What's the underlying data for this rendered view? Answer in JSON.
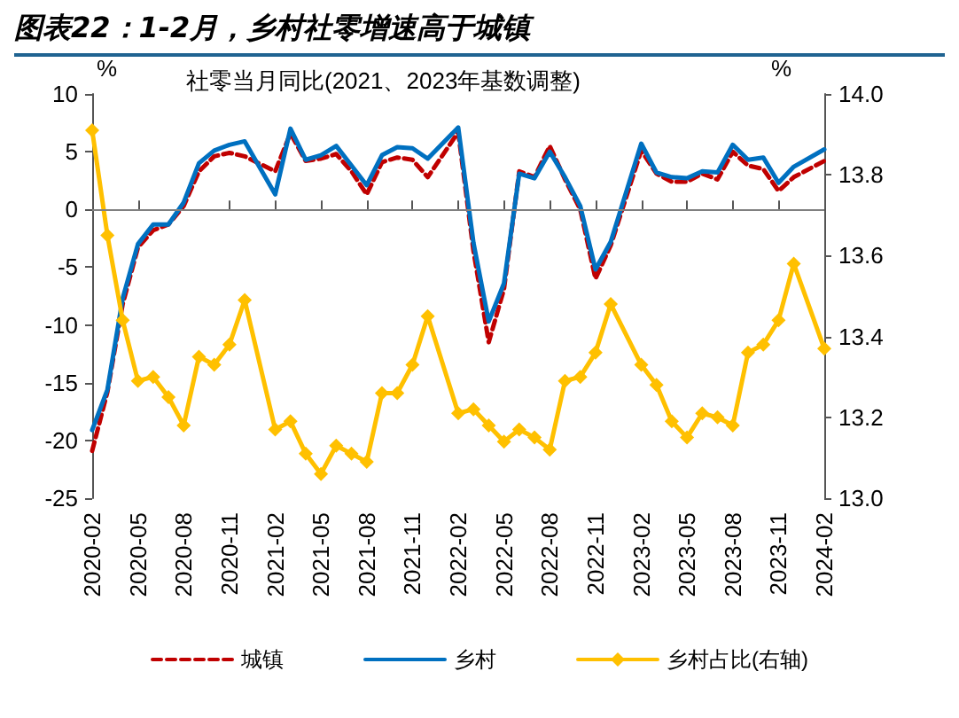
{
  "chart_data": {
    "type": "line",
    "title": "图表22：1-2月，乡村社零增速高于城镇",
    "subtitle": "社零当月同比(2021、2023年基数调整)",
    "ylabel": "%",
    "y2label": "%",
    "categories": [
      "2020-02",
      null,
      null,
      "2020-05",
      null,
      null,
      "2020-08",
      null,
      null,
      "2020-11",
      null,
      null,
      "2021-02",
      null,
      null,
      "2021-05",
      null,
      null,
      "2021-08",
      null,
      null,
      "2021-11",
      null,
      null,
      "2022-02",
      null,
      null,
      "2022-05",
      null,
      null,
      "2022-08",
      null,
      null,
      "2022-11",
      null,
      null,
      "2023-02",
      null,
      null,
      "2023-05",
      null,
      null,
      "2023-08",
      null,
      null,
      "2023-11",
      null,
      null,
      "2024-02"
    ],
    "series": [
      {
        "name": "城镇",
        "color": "#c00000",
        "line_style": "dashed",
        "marker": "none",
        "values": [
          -20.9,
          -15.8,
          -8.2,
          -3.3,
          -1.8,
          -1.3,
          0.3,
          3.3,
          4.6,
          4.9,
          4.6,
          null,
          3.3,
          6.6,
          4.2,
          4.4,
          4.8,
          3.3,
          1.3,
          4.1,
          4.5,
          4.3,
          2.8,
          null,
          6.7,
          -3.6,
          -11.5,
          -6.9,
          3.3,
          2.8,
          5.5,
          2.6,
          0.0,
          -6.0,
          -3.1,
          null,
          5.1,
          3.1,
          2.4,
          2.4,
          3.1,
          2.6,
          5.0,
          3.8,
          3.5,
          1.6,
          2.8,
          null,
          4.2
        ]
      },
      {
        "name": "乡村",
        "color": "#0070c0",
        "line_style": "solid",
        "marker": "none",
        "values": [
          -19.1,
          -15.6,
          -7.7,
          -3.0,
          -1.3,
          -1.3,
          0.6,
          4.0,
          5.1,
          5.6,
          5.9,
          null,
          1.3,
          7.0,
          4.3,
          4.7,
          5.5,
          3.8,
          2.1,
          4.7,
          5.4,
          5.3,
          4.4,
          null,
          7.1,
          -2.9,
          -9.7,
          -6.4,
          3.1,
          2.7,
          5.0,
          2.8,
          0.3,
          -5.2,
          -2.8,
          null,
          5.7,
          3.2,
          2.8,
          2.7,
          3.3,
          3.2,
          5.6,
          4.3,
          4.5,
          2.3,
          3.7,
          null,
          5.2
        ]
      },
      {
        "name": "乡村占比(右轴)",
        "color": "#ffc000",
        "axis": "y2",
        "line_style": "solid",
        "marker": "diamond",
        "values": [
          13.91,
          13.65,
          13.44,
          13.29,
          13.3,
          13.25,
          13.18,
          13.35,
          13.33,
          13.38,
          13.49,
          null,
          13.17,
          13.19,
          13.11,
          13.06,
          13.13,
          13.11,
          13.09,
          13.26,
          13.26,
          13.33,
          13.45,
          null,
          13.21,
          13.22,
          13.18,
          13.14,
          13.17,
          13.15,
          13.12,
          13.29,
          13.3,
          13.36,
          13.48,
          null,
          13.33,
          13.28,
          13.19,
          13.15,
          13.21,
          13.2,
          13.18,
          13.36,
          13.38,
          13.44,
          13.58,
          null,
          13.37
        ]
      }
    ],
    "ylim": [
      -25,
      10
    ],
    "yticks": [
      -25,
      -20,
      -15,
      -10,
      -5,
      0,
      5,
      10
    ],
    "y2lim": [
      13.0,
      14.0
    ],
    "y2ticks": [
      {
        "value": 13.0,
        "label": "13.0"
      },
      13.2,
      13.4,
      13.6,
      13.8,
      {
        "value": 14.0,
        "label": "14.0"
      }
    ],
    "ref_lines": [
      {
        "axis": "y",
        "value": 0,
        "color": "#808080"
      }
    ],
    "grid": false,
    "legend": "bottom"
  }
}
